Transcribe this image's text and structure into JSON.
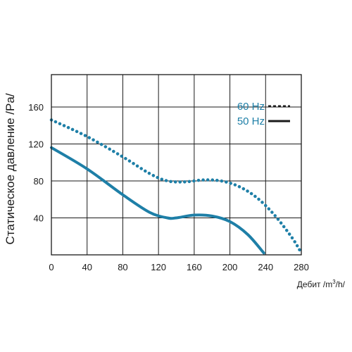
{
  "chart_data": {
    "type": "line",
    "title": "",
    "ylabel": "Статическое давление /Pa/",
    "xlabel": {
      "prefix": "Дебит /m",
      "superscript": "3",
      "suffix": "/h/"
    },
    "xlim": [
      0,
      280
    ],
    "ylim": [
      0,
      195
    ],
    "x_ticks": [
      0,
      40,
      80,
      120,
      160,
      200,
      240,
      280
    ],
    "y_ticks": [
      40,
      80,
      120,
      160
    ],
    "x_tick_labels": [
      "0",
      "40",
      "80",
      "120",
      "160",
      "200",
      "240",
      "280"
    ],
    "y_tick_labels": [
      "40",
      "80",
      "120",
      "160"
    ],
    "grid": true,
    "legend_position": "top-right",
    "colors": {
      "series": "#1e7fa7",
      "legend_text": "#1e7fa7",
      "legend_marker": "#1a1a1a",
      "grid": "#1a1a1a",
      "frame": "#1a1a1a"
    },
    "series": [
      {
        "name": "60 Hz",
        "style": "dotted",
        "x": [
          0,
          40,
          80,
          110,
          130,
          150,
          170,
          190,
          210,
          230,
          250,
          270,
          280
        ],
        "y": [
          146,
          128,
          106,
          88,
          80,
          79,
          81,
          80,
          74,
          62,
          43,
          18,
          2
        ]
      },
      {
        "name": "50 Hz",
        "style": "solid",
        "x": [
          0,
          40,
          80,
          110,
          130,
          140,
          160,
          180,
          200,
          220,
          238
        ],
        "y": [
          116,
          93,
          65,
          46,
          40,
          40,
          43,
          42,
          36,
          22,
          2
        ]
      }
    ]
  }
}
